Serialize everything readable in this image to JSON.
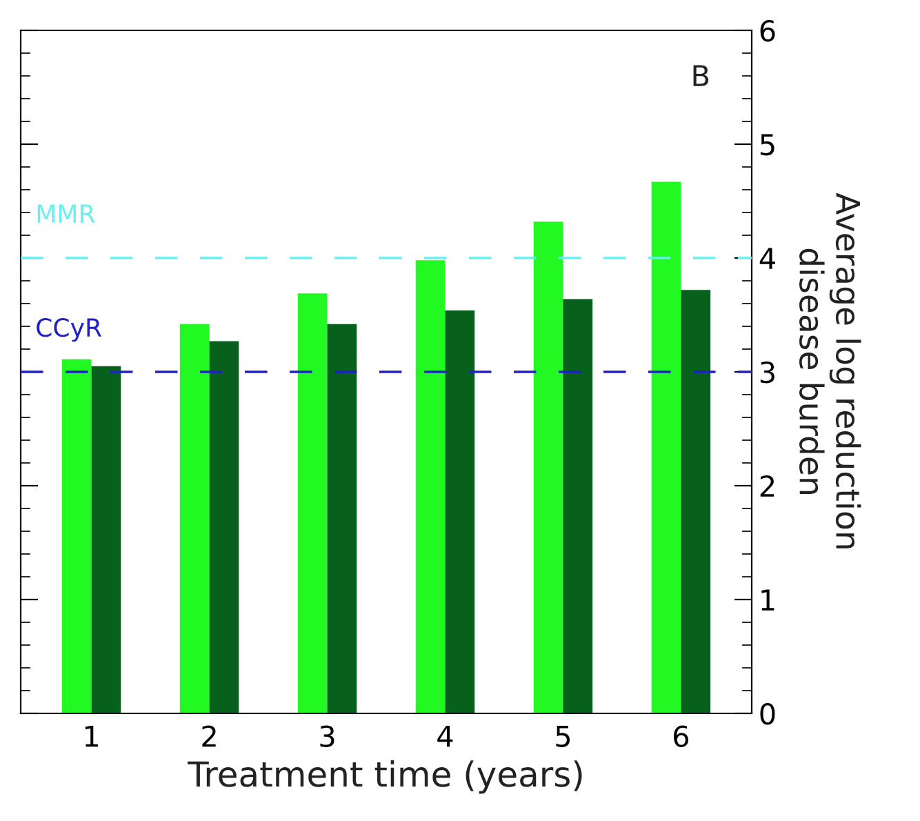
{
  "chart_data": {
    "type": "bar",
    "categories": [
      "1",
      "2",
      "3",
      "4",
      "5",
      "6"
    ],
    "series": [
      {
        "color": "#22f822",
        "values": [
          3.11,
          3.42,
          3.69,
          3.98,
          4.32,
          4.67
        ]
      },
      {
        "color": "#07601c",
        "values": [
          3.05,
          3.27,
          3.42,
          3.54,
          3.64,
          3.72
        ]
      }
    ],
    "xlabel": "Treatment time (years)",
    "ylabel": "Average log reduction\ndisease burden",
    "ylim": [
      0,
      6
    ],
    "yticks": [
      0,
      {
        "value": 0.2,
        "label": null
      },
      {
        "value": 0.4,
        "label": null
      },
      {
        "value": 0.6,
        "label": null
      },
      {
        "value": 0.8,
        "label": null
      },
      1,
      {
        "value": 1.2,
        "label": null
      },
      {
        "value": 1.4,
        "label": null
      },
      {
        "value": 1.6,
        "label": null
      },
      {
        "value": 1.8,
        "label": null
      },
      2,
      {
        "value": 2.2,
        "label": null
      },
      {
        "value": 2.4,
        "label": null
      },
      {
        "value": 2.6,
        "label": null
      },
      {
        "value": 2.8,
        "label": null
      },
      3,
      {
        "value": 3.2,
        "label": null
      },
      {
        "value": 3.4,
        "label": null
      },
      {
        "value": 3.6,
        "label": null
      },
      {
        "value": 3.8,
        "label": null
      },
      4,
      {
        "value": 4.2,
        "label": null
      },
      {
        "value": 4.4,
        "label": null
      },
      {
        "value": 4.6,
        "label": null
      },
      {
        "value": 4.8,
        "label": null
      },
      5,
      {
        "value": 5.2,
        "label": null
      },
      {
        "value": 5.4,
        "label": null
      },
      {
        "value": 5.6,
        "label": null
      },
      {
        "value": 5.8,
        "label": null
      },
      6
    ],
    "ref_lines": [
      {
        "axis": "y",
        "value": 4,
        "label": "MMR",
        "color": "#66f0f0",
        "line_style": "dashed"
      },
      {
        "axis": "y",
        "value": 3,
        "label": "CCyR",
        "color": "#2020c8",
        "line_style": "dashed"
      }
    ],
    "annotations": [
      "B"
    ],
    "grid": false,
    "legend": false
  }
}
